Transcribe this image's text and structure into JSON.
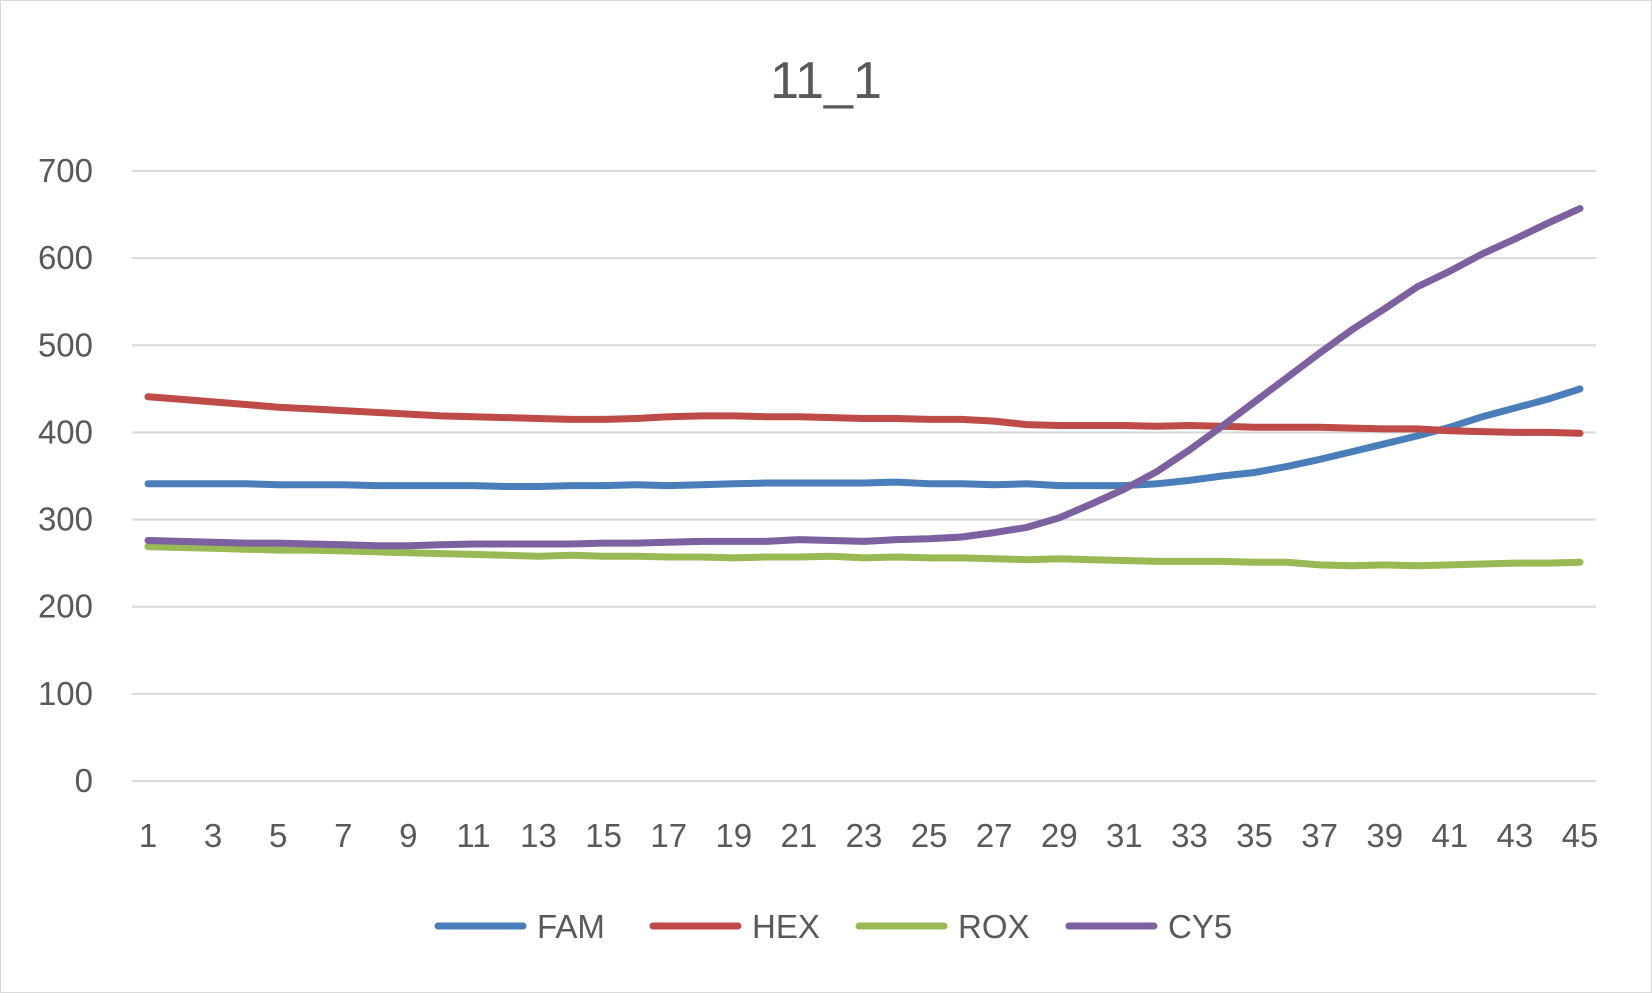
{
  "chart_data": {
    "type": "line",
    "title": "11_1",
    "xlabel": "",
    "ylabel": "",
    "ylim": [
      0,
      700
    ],
    "yticks": [
      "0",
      "100",
      "200",
      "300",
      "400",
      "500",
      "600",
      "700"
    ],
    "x": [
      1,
      2,
      3,
      4,
      5,
      6,
      7,
      8,
      9,
      10,
      11,
      12,
      13,
      14,
      15,
      16,
      17,
      18,
      19,
      20,
      21,
      22,
      23,
      24,
      25,
      26,
      27,
      28,
      29,
      30,
      31,
      32,
      33,
      34,
      35,
      36,
      37,
      38,
      39,
      40,
      41,
      42,
      43,
      44,
      45
    ],
    "xtick_labels": [
      "1",
      "3",
      "5",
      "7",
      "9",
      "11",
      "13",
      "15",
      "17",
      "19",
      "21",
      "23",
      "25",
      "27",
      "29",
      "31",
      "33",
      "35",
      "37",
      "39",
      "41",
      "43",
      "45"
    ],
    "grid": true,
    "legend_position": "bottom",
    "series": [
      {
        "name": "FAM",
        "color": "#4a7ebb",
        "values": [
          341,
          341,
          341,
          341,
          340,
          340,
          340,
          339,
          339,
          339,
          339,
          338,
          338,
          339,
          339,
          340,
          339,
          340,
          341,
          342,
          342,
          342,
          342,
          343,
          341,
          341,
          340,
          341,
          339,
          339,
          339,
          341,
          345,
          350,
          354,
          361,
          369,
          378,
          387,
          396,
          406,
          418,
          428,
          438,
          450
        ]
      },
      {
        "name": "HEX",
        "color": "#be4b48",
        "values": [
          441,
          438,
          435,
          432,
          429,
          427,
          425,
          423,
          421,
          419,
          418,
          417,
          416,
          415,
          415,
          416,
          418,
          419,
          419,
          418,
          418,
          417,
          416,
          416,
          415,
          415,
          413,
          409,
          408,
          408,
          408,
          407,
          408,
          407,
          406,
          406,
          406,
          405,
          404,
          404,
          402,
          401,
          400,
          400,
          399
        ]
      },
      {
        "name": "ROX",
        "color": "#98b954",
        "values": [
          269,
          268,
          267,
          266,
          265,
          265,
          264,
          263,
          262,
          261,
          260,
          259,
          258,
          259,
          258,
          258,
          257,
          257,
          256,
          257,
          257,
          258,
          256,
          257,
          256,
          256,
          255,
          254,
          255,
          254,
          253,
          252,
          252,
          252,
          251,
          251,
          248,
          247,
          248,
          247,
          248,
          249,
          250,
          250,
          251
        ]
      },
      {
        "name": "CY5",
        "color": "#7d60a0",
        "values": [
          276,
          275,
          274,
          273,
          273,
          272,
          271,
          270,
          270,
          271,
          272,
          272,
          272,
          272,
          273,
          273,
          274,
          275,
          275,
          275,
          277,
          276,
          275,
          277,
          278,
          280,
          285,
          291,
          302,
          318,
          335,
          355,
          380,
          407,
          435,
          463,
          491,
          518,
          542,
          567,
          585,
          605,
          622,
          640,
          657
        ]
      }
    ]
  }
}
